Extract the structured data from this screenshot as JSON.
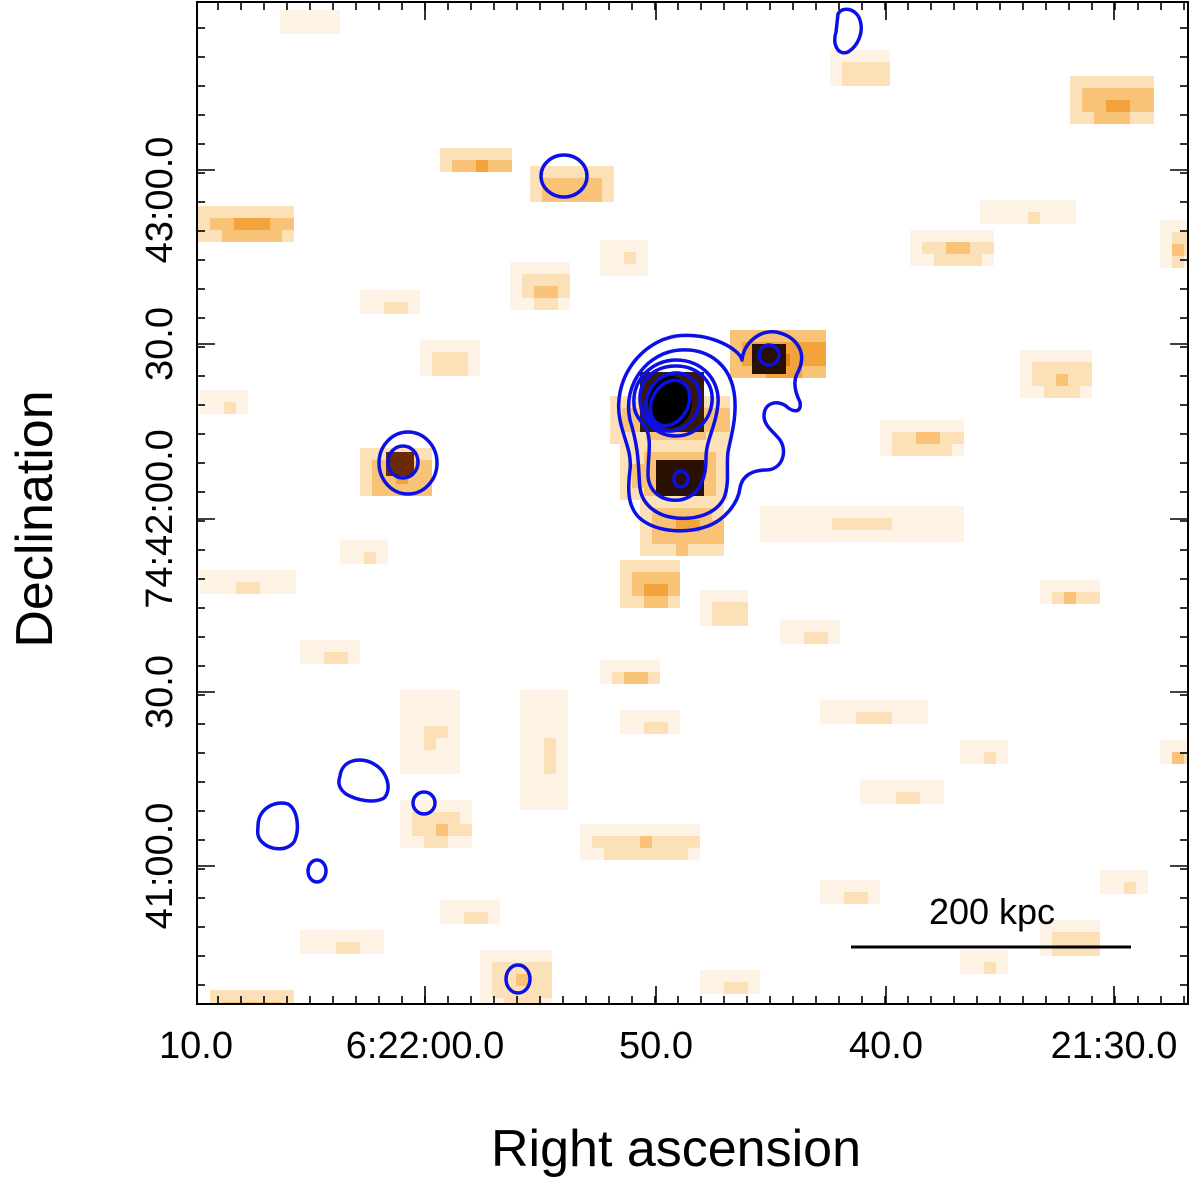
{
  "figure": {
    "x_axis_label": "Right ascension",
    "y_axis_label": "Declination",
    "x_ticks": [
      "10.0",
      "6:22:00.0",
      "50.0",
      "40.0",
      "21:30.0"
    ],
    "y_ticks": [
      "43:00.0",
      "30.0",
      "74:42:00.0",
      "30.0",
      "41:00.0"
    ],
    "scale_bar_label": "200 kpc",
    "colors": {
      "contour": "#0a10e6",
      "heatmap_low": "#fde6c4",
      "heatmap_mid": "#f5a623",
      "heatmap_high": "#c85a0a",
      "heatmap_peak": "#1a0a00",
      "frame": "#000000"
    }
  }
}
